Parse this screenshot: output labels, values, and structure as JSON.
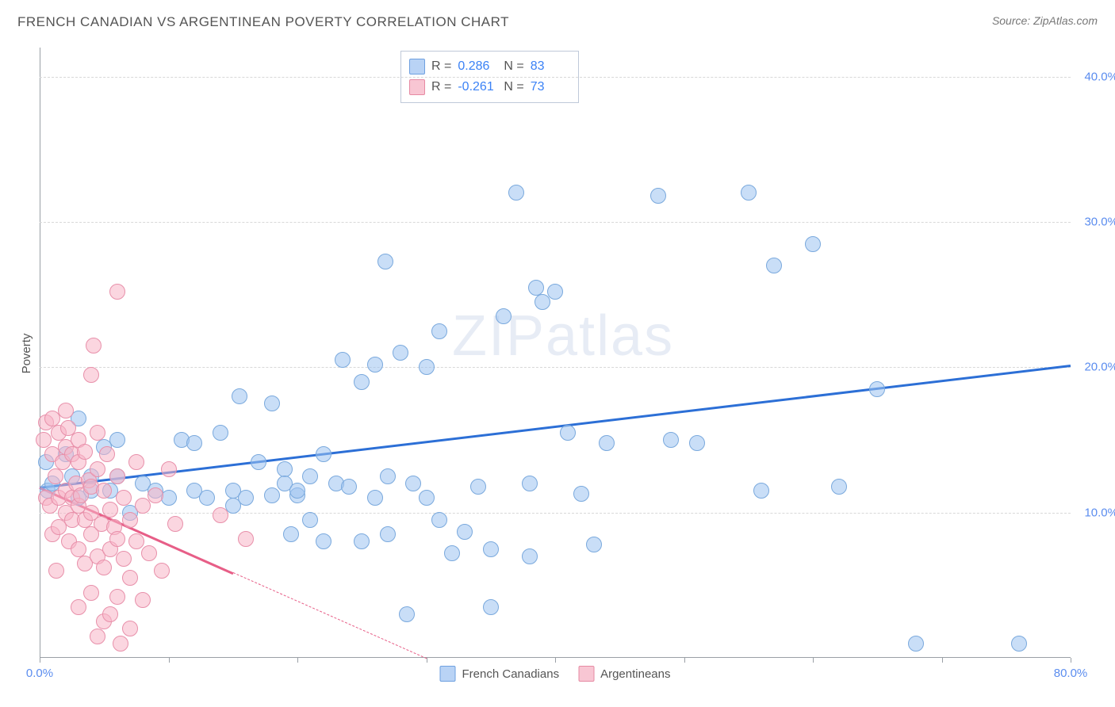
{
  "title": "FRENCH CANADIAN VS ARGENTINEAN POVERTY CORRELATION CHART",
  "source_prefix": "Source: ",
  "source_name": "ZipAtlas.com",
  "y_axis_title": "Poverty",
  "watermark": "ZIPatlas",
  "chart": {
    "type": "scatter",
    "background_color": "#ffffff",
    "grid_color": "#d8d8d8",
    "axis_color": "#9aa0a6",
    "tick_label_color": "#5b8def",
    "xlim": [
      0,
      80
    ],
    "ylim": [
      0,
      42
    ],
    "x_ticks": [
      0,
      10,
      20,
      30,
      40,
      50,
      60,
      70,
      80
    ],
    "x_tick_labels": {
      "0": "0.0%",
      "80": "80.0%"
    },
    "y_ticks": [
      10,
      20,
      30,
      40
    ],
    "y_tick_labels": {
      "10": "10.0%",
      "20": "20.0%",
      "30": "30.0%",
      "40": "40.0%"
    },
    "point_radius": 9,
    "point_stroke_width": 1.2,
    "trend_width": 2.5
  },
  "stats_box": {
    "r_label": "R =",
    "n_label": "N =",
    "rows": [
      {
        "swatch_fill": "#b9d3f5",
        "swatch_stroke": "#6ea0e0",
        "r": "0.286",
        "n": "83"
      },
      {
        "swatch_fill": "#f8c6d3",
        "swatch_stroke": "#e68aa3",
        "r": "-0.261",
        "n": "73"
      }
    ]
  },
  "series": [
    {
      "name": "French Canadians",
      "fill": "rgba(157, 195, 240, 0.55)",
      "stroke": "#7aa9dd",
      "trend_color": "#2c6fd6",
      "trend": {
        "x1": 0,
        "y1": 11.8,
        "x2": 80,
        "y2": 20.2,
        "dash_from_x": null
      },
      "points": [
        [
          0.5,
          13.5
        ],
        [
          0.6,
          11.5
        ],
        [
          1,
          12
        ],
        [
          2,
          14
        ],
        [
          2.5,
          12.5
        ],
        [
          3,
          11
        ],
        [
          3,
          16.5
        ],
        [
          4,
          11.5
        ],
        [
          4,
          12.5
        ],
        [
          5,
          14.5
        ],
        [
          5.5,
          11.5
        ],
        [
          6,
          12.5
        ],
        [
          6,
          15
        ],
        [
          7,
          10
        ],
        [
          8,
          12
        ],
        [
          9,
          11.5
        ],
        [
          10,
          11
        ],
        [
          11,
          15
        ],
        [
          12,
          14.8
        ],
        [
          12,
          11.5
        ],
        [
          13,
          11
        ],
        [
          14,
          15.5
        ],
        [
          15,
          10.5
        ],
        [
          15,
          11.5
        ],
        [
          15.5,
          18
        ],
        [
          16,
          11
        ],
        [
          17,
          13.5
        ],
        [
          18,
          11.2
        ],
        [
          18,
          17.5
        ],
        [
          19,
          13
        ],
        [
          19,
          12
        ],
        [
          19.5,
          8.5
        ],
        [
          20,
          11.2
        ],
        [
          20,
          11.5
        ],
        [
          21,
          12.5
        ],
        [
          21,
          9.5
        ],
        [
          22,
          14
        ],
        [
          22,
          8
        ],
        [
          23,
          12
        ],
        [
          23.5,
          20.5
        ],
        [
          24,
          11.8
        ],
        [
          25,
          19
        ],
        [
          25,
          8
        ],
        [
          26,
          11
        ],
        [
          26,
          20.2
        ],
        [
          26.8,
          27.3
        ],
        [
          27,
          8.5
        ],
        [
          27,
          12.5
        ],
        [
          28,
          21
        ],
        [
          28.5,
          3
        ],
        [
          29,
          12
        ],
        [
          30,
          11
        ],
        [
          30,
          20
        ],
        [
          31,
          9.5
        ],
        [
          31,
          22.5
        ],
        [
          32,
          7.2
        ],
        [
          33,
          8.7
        ],
        [
          34,
          11.8
        ],
        [
          35,
          3.5
        ],
        [
          35,
          7.5
        ],
        [
          36,
          23.5
        ],
        [
          37,
          32
        ],
        [
          38,
          12
        ],
        [
          38,
          7
        ],
        [
          38.5,
          25.5
        ],
        [
          39,
          24.5
        ],
        [
          40,
          25.2
        ],
        [
          41,
          15.5
        ],
        [
          42,
          11.3
        ],
        [
          43,
          7.8
        ],
        [
          44,
          14.8
        ],
        [
          48,
          31.8
        ],
        [
          49,
          15
        ],
        [
          51,
          14.8
        ],
        [
          55,
          32
        ],
        [
          56,
          11.5
        ],
        [
          57,
          27
        ],
        [
          60,
          28.5
        ],
        [
          62,
          11.8
        ],
        [
          65,
          18.5
        ],
        [
          68,
          1
        ],
        [
          76,
          1
        ]
      ]
    },
    {
      "name": "Argentineans",
      "fill": "rgba(248, 180, 198, 0.55)",
      "stroke": "#e890aa",
      "trend_color": "#e75e87",
      "trend": {
        "x1": 0,
        "y1": 11.8,
        "x2": 30,
        "y2": 0,
        "dash_from_x": 15
      },
      "points": [
        [
          0.3,
          15
        ],
        [
          0.5,
          11
        ],
        [
          0.5,
          16.2
        ],
        [
          0.8,
          10.5
        ],
        [
          1,
          14
        ],
        [
          1,
          16.5
        ],
        [
          1,
          8.5
        ],
        [
          1.2,
          12.5
        ],
        [
          1.3,
          6
        ],
        [
          1.5,
          15.5
        ],
        [
          1.5,
          11
        ],
        [
          1.5,
          9
        ],
        [
          1.8,
          13.5
        ],
        [
          2,
          14.5
        ],
        [
          2,
          11.5
        ],
        [
          2,
          10
        ],
        [
          2,
          17
        ],
        [
          2.2,
          15.8
        ],
        [
          2.3,
          8
        ],
        [
          2.5,
          11
        ],
        [
          2.5,
          9.5
        ],
        [
          2.5,
          14
        ],
        [
          2.8,
          12
        ],
        [
          3,
          13.5
        ],
        [
          3,
          15
        ],
        [
          3,
          10.5
        ],
        [
          3,
          7.5
        ],
        [
          3,
          3.5
        ],
        [
          3.2,
          11.2
        ],
        [
          3.5,
          9.5
        ],
        [
          3.5,
          14.2
        ],
        [
          3.5,
          6.5
        ],
        [
          3.8,
          12.2
        ],
        [
          4,
          19.5
        ],
        [
          4,
          11.8
        ],
        [
          4,
          10
        ],
        [
          4,
          8.5
        ],
        [
          4,
          4.5
        ],
        [
          4.2,
          21.5
        ],
        [
          4.5,
          13
        ],
        [
          4.5,
          15.5
        ],
        [
          4.5,
          7
        ],
        [
          4.5,
          1.5
        ],
        [
          4.8,
          9.2
        ],
        [
          5,
          11.5
        ],
        [
          5,
          6.2
        ],
        [
          5,
          2.5
        ],
        [
          5.2,
          14
        ],
        [
          5.5,
          10.2
        ],
        [
          5.5,
          7.5
        ],
        [
          5.5,
          3
        ],
        [
          5.8,
          9
        ],
        [
          6,
          25.2
        ],
        [
          6,
          12.5
        ],
        [
          6,
          8.2
        ],
        [
          6,
          4.2
        ],
        [
          6.3,
          1
        ],
        [
          6.5,
          11
        ],
        [
          6.5,
          6.8
        ],
        [
          7,
          9.5
        ],
        [
          7,
          5.5
        ],
        [
          7,
          2
        ],
        [
          7.5,
          13.5
        ],
        [
          7.5,
          8
        ],
        [
          8,
          10.5
        ],
        [
          8,
          4
        ],
        [
          8.5,
          7.2
        ],
        [
          9,
          11.2
        ],
        [
          9.5,
          6
        ],
        [
          10,
          13
        ],
        [
          10.5,
          9.2
        ],
        [
          14,
          9.8
        ],
        [
          16,
          8.2
        ]
      ]
    }
  ],
  "bottom_legend": [
    {
      "label": "French Canadians",
      "fill": "#b9d3f5",
      "stroke": "#6ea0e0"
    },
    {
      "label": "Argentineans",
      "fill": "#f8c6d3",
      "stroke": "#e68aa3"
    }
  ]
}
